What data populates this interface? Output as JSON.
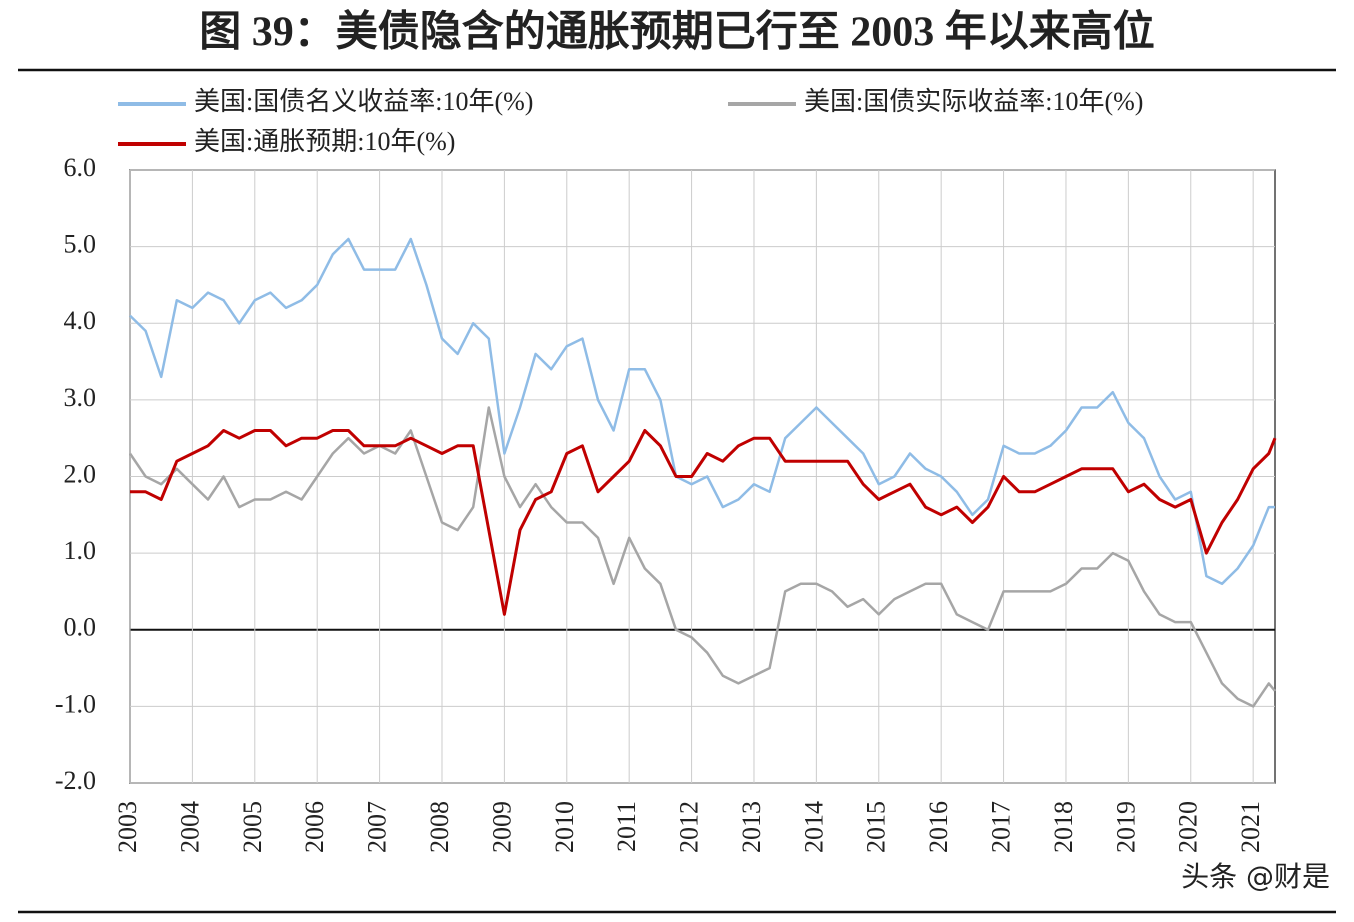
{
  "chart_data": {
    "type": "line",
    "title": "图 39：美债隐含的通胀预期已行至 2003 年以来高位",
    "watermark": "头条 @财是",
    "x": [
      2003,
      2003.25,
      2003.5,
      2003.75,
      2004,
      2004.25,
      2004.5,
      2004.75,
      2005,
      2005.25,
      2005.5,
      2005.75,
      2006,
      2006.25,
      2006.5,
      2006.75,
      2007,
      2007.25,
      2007.5,
      2007.75,
      2008,
      2008.25,
      2008.5,
      2008.75,
      2009,
      2009.25,
      2009.5,
      2009.75,
      2010,
      2010.25,
      2010.5,
      2010.75,
      2011,
      2011.25,
      2011.5,
      2011.75,
      2012,
      2012.25,
      2012.5,
      2012.75,
      2013,
      2013.25,
      2013.5,
      2013.75,
      2014,
      2014.25,
      2014.5,
      2014.75,
      2015,
      2015.25,
      2015.5,
      2015.75,
      2016,
      2016.25,
      2016.5,
      2016.75,
      2017,
      2017.25,
      2017.5,
      2017.75,
      2018,
      2018.25,
      2018.5,
      2018.75,
      2019,
      2019.25,
      2019.5,
      2019.75,
      2020,
      2020.25,
      2020.5,
      2020.75,
      2021,
      2021.25,
      2021.35
    ],
    "series": [
      {
        "name": "美国:国债名义收益率:10年(%)",
        "color": "#8fbce6",
        "values": [
          4.1,
          3.9,
          3.3,
          4.3,
          4.2,
          4.4,
          4.3,
          4.0,
          4.3,
          4.4,
          4.2,
          4.3,
          4.5,
          4.9,
          5.1,
          4.7,
          4.7,
          4.7,
          5.1,
          4.5,
          3.8,
          3.6,
          4.0,
          3.8,
          2.3,
          2.9,
          3.6,
          3.4,
          3.7,
          3.8,
          3.0,
          2.6,
          3.4,
          3.4,
          3.0,
          2.0,
          1.9,
          2.0,
          1.6,
          1.7,
          1.9,
          1.8,
          2.5,
          2.7,
          2.9,
          2.7,
          2.5,
          2.3,
          1.9,
          2.0,
          2.3,
          2.1,
          2.0,
          1.8,
          1.5,
          1.7,
          2.4,
          2.3,
          2.3,
          2.4,
          2.6,
          2.9,
          2.9,
          3.1,
          2.7,
          2.5,
          2.0,
          1.7,
          1.8,
          0.7,
          0.6,
          0.8,
          1.1,
          1.6,
          1.6
        ]
      },
      {
        "name": "美国:国债实际收益率:10年(%)",
        "color": "#a6a6a6",
        "values": [
          2.3,
          2.0,
          1.9,
          2.1,
          1.9,
          1.7,
          2.0,
          1.6,
          1.7,
          1.7,
          1.8,
          1.7,
          2.0,
          2.3,
          2.5,
          2.3,
          2.4,
          2.3,
          2.6,
          2.0,
          1.4,
          1.3,
          1.6,
          2.9,
          2.0,
          1.6,
          1.9,
          1.6,
          1.4,
          1.4,
          1.2,
          0.6,
          1.2,
          0.8,
          0.6,
          0.0,
          -0.1,
          -0.3,
          -0.6,
          -0.7,
          -0.6,
          -0.5,
          0.5,
          0.6,
          0.6,
          0.5,
          0.3,
          0.4,
          0.2,
          0.4,
          0.5,
          0.6,
          0.6,
          0.2,
          0.1,
          0.0,
          0.5,
          0.5,
          0.5,
          0.5,
          0.6,
          0.8,
          0.8,
          1.0,
          0.9,
          0.5,
          0.2,
          0.1,
          0.1,
          -0.3,
          -0.7,
          -0.9,
          -1.0,
          -0.7,
          -0.8
        ]
      },
      {
        "name": "美国:通胀预期:10年(%)",
        "color": "#c00000",
        "values": [
          1.8,
          1.8,
          1.7,
          2.2,
          2.3,
          2.4,
          2.6,
          2.5,
          2.6,
          2.6,
          2.4,
          2.5,
          2.5,
          2.6,
          2.6,
          2.4,
          2.4,
          2.4,
          2.5,
          2.4,
          2.3,
          2.4,
          2.4,
          1.3,
          0.2,
          1.3,
          1.7,
          1.8,
          2.3,
          2.4,
          1.8,
          2.0,
          2.2,
          2.6,
          2.4,
          2.0,
          2.0,
          2.3,
          2.2,
          2.4,
          2.5,
          2.5,
          2.2,
          2.2,
          2.2,
          2.2,
          2.2,
          1.9,
          1.7,
          1.8,
          1.9,
          1.6,
          1.5,
          1.6,
          1.4,
          1.6,
          2.0,
          1.8,
          1.8,
          1.9,
          2.0,
          2.1,
          2.1,
          2.1,
          1.8,
          1.9,
          1.7,
          1.6,
          1.7,
          1.0,
          1.4,
          1.7,
          2.1,
          2.3,
          2.5
        ]
      }
    ],
    "xlim": [
      2003,
      2021.35
    ],
    "xticks": [
      2003,
      2004,
      2005,
      2006,
      2007,
      2008,
      2009,
      2010,
      2011,
      2012,
      2013,
      2014,
      2015,
      2016,
      2017,
      2018,
      2019,
      2020,
      2021
    ],
    "ylim": [
      -2,
      6
    ],
    "yticks": [
      {
        "value": -2,
        "label": "-2.0"
      },
      {
        "value": -1,
        "label": "-1.0"
      },
      {
        "value": 0,
        "label": "0.0"
      },
      {
        "value": 1,
        "label": "1.0"
      },
      {
        "value": 2,
        "label": "2.0"
      },
      {
        "value": 3,
        "label": "3.0"
      },
      {
        "value": 4,
        "label": "4.0"
      },
      {
        "value": 5,
        "label": "5.0"
      },
      {
        "value": 6,
        "label": "6.0"
      }
    ],
    "grid": true
  }
}
